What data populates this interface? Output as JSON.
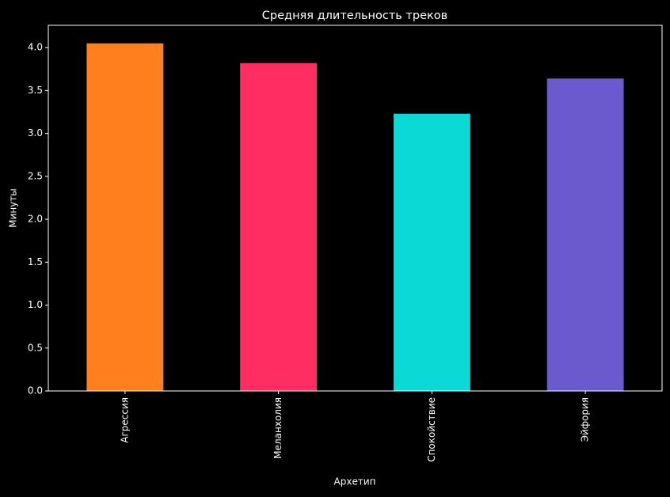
{
  "chart_data": {
    "type": "bar",
    "title": "Средняя длительность треков",
    "x_label": "Архетип",
    "y_label": "Минуты",
    "categories": [
      "Агрессия",
      "Меланхолия",
      "Спокойствие",
      "Эйфория"
    ],
    "values": [
      4.05,
      3.82,
      3.23,
      3.64
    ],
    "colors": [
      "#ff7f1e",
      "#ff2d62",
      "#0bd9d6",
      "#6a5acd"
    ],
    "ylim": [
      0,
      4.26
    ],
    "yticks": [
      {
        "value": 0,
        "label": "0.0"
      },
      {
        "value": 0.5,
        "label": "0.5"
      },
      {
        "value": 1,
        "label": "1.0"
      },
      {
        "value": 1.5,
        "label": "1.5"
      },
      {
        "value": 2,
        "label": "2.0"
      },
      {
        "value": 2.5,
        "label": "2.5"
      },
      {
        "value": 3,
        "label": "3.0"
      },
      {
        "value": 3.5,
        "label": "3.5"
      },
      {
        "value": 4,
        "label": "4.0"
      }
    ]
  }
}
